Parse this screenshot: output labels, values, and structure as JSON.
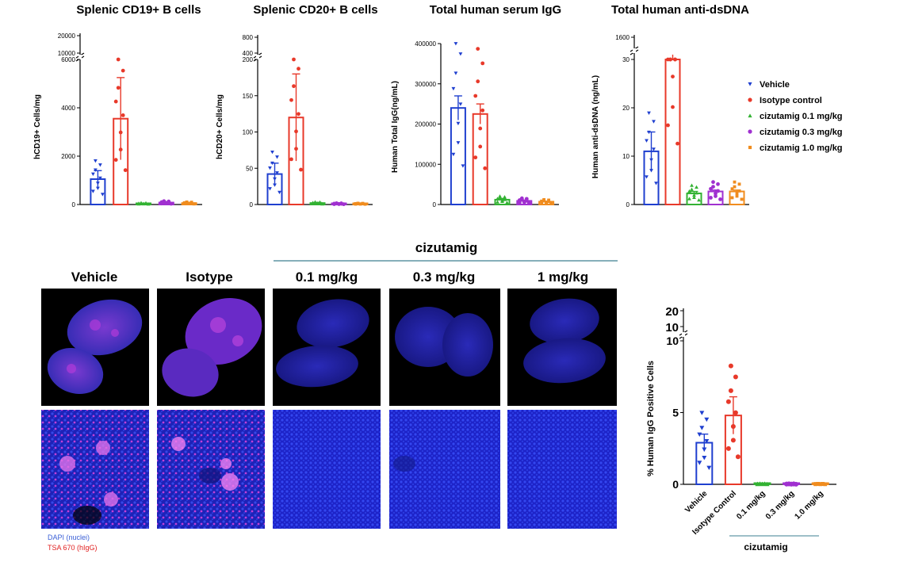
{
  "colors": {
    "vehicle": "#1f3fcf",
    "isotype": "#e8392a",
    "c01": "#33b233",
    "c03": "#a030d0",
    "c10": "#f08c1e",
    "bracket": "#3d7f90"
  },
  "legend": {
    "items": [
      {
        "label": "Vehicle",
        "color": "#1f3fcf",
        "marker": "triangle-down"
      },
      {
        "label": "Isotype control",
        "color": "#e8392a",
        "marker": "circle"
      },
      {
        "label": "cizutamig 0.1 mg/kg",
        "color": "#33b233",
        "marker": "triangle-up"
      },
      {
        "label": "cizutamig 0.3 mg/kg",
        "color": "#a030d0",
        "marker": "circle"
      },
      {
        "label": "cizutamig 1.0 mg/kg",
        "color": "#f08c1e",
        "marker": "square"
      }
    ]
  },
  "chart_data": [
    {
      "type": "bar",
      "title": "Splenic CD19+ B cells",
      "ylabel": "hCD19+ Cells/mg",
      "ylim": [
        0,
        6000
      ],
      "upper_ticks": [
        "20000",
        "10000"
      ],
      "yticks": [
        "6000",
        "4000",
        "2000",
        "0"
      ],
      "categories": [
        "Vehicle",
        "Isotype control",
        "cizutamig 0.1 mg/kg",
        "cizutamig 0.3 mg/kg",
        "cizutamig 1.0 mg/kg"
      ],
      "values": [
        1050,
        3550,
        40,
        80,
        60
      ],
      "errors": [
        350,
        1700,
        15,
        30,
        20
      ]
    },
    {
      "type": "bar",
      "title": "Splenic CD20+ B cells",
      "ylabel": "hCD20+ Cells/mg",
      "ylim": [
        0,
        200
      ],
      "upper_ticks": [
        "800",
        "400"
      ],
      "yticks": [
        "200",
        "150",
        "100",
        "50",
        "0"
      ],
      "categories": [
        "Vehicle",
        "Isotype control",
        "cizutamig 0.1 mg/kg",
        "cizutamig 0.3 mg/kg",
        "cizutamig 1.0 mg/kg"
      ],
      "values": [
        42,
        120,
        2,
        1,
        1
      ],
      "errors": [
        15,
        60,
        1,
        0.5,
        0.5
      ]
    },
    {
      "type": "bar",
      "title": "Total human serum IgG",
      "ylabel": "Human Total IgG(ng/mL)",
      "ylim": [
        0,
        400000
      ],
      "yticks": [
        "400000",
        "300000",
        "200000",
        "100000",
        "0"
      ],
      "categories": [
        "Vehicle",
        "Isotype control",
        "cizutamig 0.1 mg/kg",
        "cizutamig 0.3 mg/kg",
        "cizutamig 1.0 mg/kg"
      ],
      "values": [
        240000,
        225000,
        12000,
        9000,
        7000
      ],
      "errors": [
        30000,
        25000,
        3000,
        2000,
        1500
      ]
    },
    {
      "type": "bar",
      "title": "Total human anti-dsDNA",
      "ylabel": "Human anti-dsDNA (ng/mL)",
      "ylim": [
        0,
        30
      ],
      "upper_ticks": [
        "1600"
      ],
      "yticks": [
        "30",
        "20",
        "10",
        "0"
      ],
      "categories": [
        "Vehicle",
        "Isotype control",
        "cizutamig 0.1 mg/kg",
        "cizutamig 0.3 mg/kg",
        "cizutamig 1.0 mg/kg"
      ],
      "values": [
        11,
        31.5,
        2.3,
        2.7,
        2.7
      ],
      "errors": [
        4,
        0.5,
        0.4,
        0.3,
        0.3
      ]
    },
    {
      "type": "bar",
      "title": "",
      "ylabel": "% Human IgG Positive Cells",
      "ylim": [
        0,
        10
      ],
      "upper_ticks": [
        "20",
        "10"
      ],
      "yticks": [
        "10",
        "5",
        "0"
      ],
      "categories": [
        "Vehicle",
        "Isotype Control",
        "0.1 mg/kg",
        "0.3 mg/kg",
        "1.0 mg/kg"
      ],
      "group_label": "cizutamig",
      "values": [
        2.9,
        4.8,
        0.02,
        0.02,
        0.02
      ],
      "errors": [
        0.6,
        1.3,
        0,
        0,
        0
      ]
    }
  ],
  "imaging": {
    "group_label": "cizutamig",
    "columns": [
      "Vehicle",
      "Isotype",
      "0.1 mg/kg",
      "0.3 mg/kg",
      "1 mg/kg"
    ],
    "stain_legend": [
      {
        "label": "DAPI (nuclei)",
        "color": "#3a5fd6"
      },
      {
        "label": "TSA 670 (hIgG)",
        "color": "#e02020"
      }
    ]
  }
}
